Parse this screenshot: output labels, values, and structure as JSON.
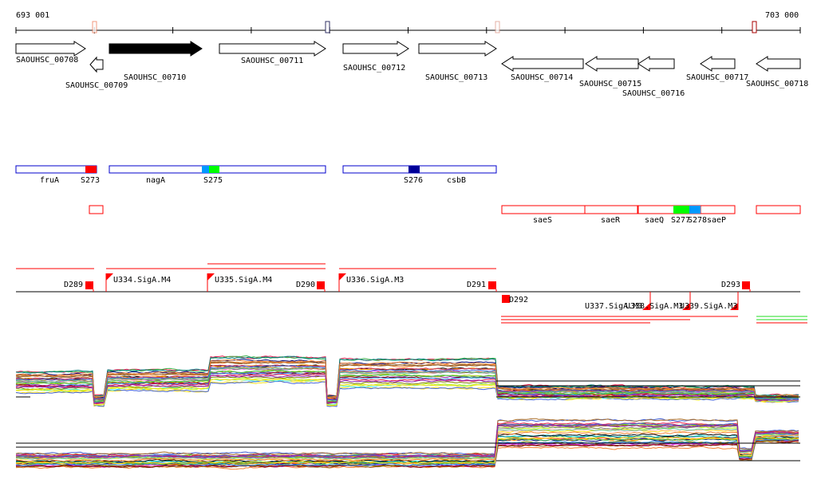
{
  "ruler": {
    "start_label": "693 001",
    "end_label": "703 000"
  },
  "genes": [
    {
      "name": "SAOUHSC_00708",
      "strand": "+",
      "highlighted": false
    },
    {
      "name": "SAOUHSC_00709",
      "strand": "-",
      "highlighted": false
    },
    {
      "name": "SAOUHSC_00710",
      "strand": "+",
      "highlighted": true
    },
    {
      "name": "SAOUHSC_00711",
      "strand": "+",
      "highlighted": false
    },
    {
      "name": "SAOUHSC_00712",
      "strand": "+",
      "highlighted": false
    },
    {
      "name": "SAOUHSC_00713",
      "strand": "+",
      "highlighted": false
    },
    {
      "name": "SAOUHSC_00714",
      "strand": "-",
      "highlighted": false
    },
    {
      "name": "SAOUHSC_00715",
      "strand": "-",
      "highlighted": false
    },
    {
      "name": "SAOUHSC_00716",
      "strand": "-",
      "highlighted": false
    },
    {
      "name": "SAOUHSC_00717",
      "strand": "-",
      "highlighted": false
    },
    {
      "name": "SAOUHSC_00718",
      "strand": "-",
      "highlighted": false
    }
  ],
  "operon_labels": {
    "forward": [
      "fruA",
      "S273",
      "nagA",
      "S275",
      "S276",
      "csbB"
    ],
    "reverse": [
      "saeS",
      "saeR",
      "saeQ",
      "S277",
      "S278",
      "saeP"
    ]
  },
  "regulatory_labels": {
    "terminators": [
      "D289",
      "D290",
      "D291",
      "D292",
      "D293"
    ],
    "promoters": [
      "U334.SigA.M4",
      "U335.SigA.M4",
      "U336.SigA.M3",
      "U337.SigA.M3",
      "U338.SigA.M3",
      "U339.SigA.M3"
    ]
  },
  "colors": {
    "forward": "#0000cc",
    "reverse": "#ff0000",
    "green": "#00ff00",
    "blue": "#0099ff",
    "navy": "#000099"
  }
}
